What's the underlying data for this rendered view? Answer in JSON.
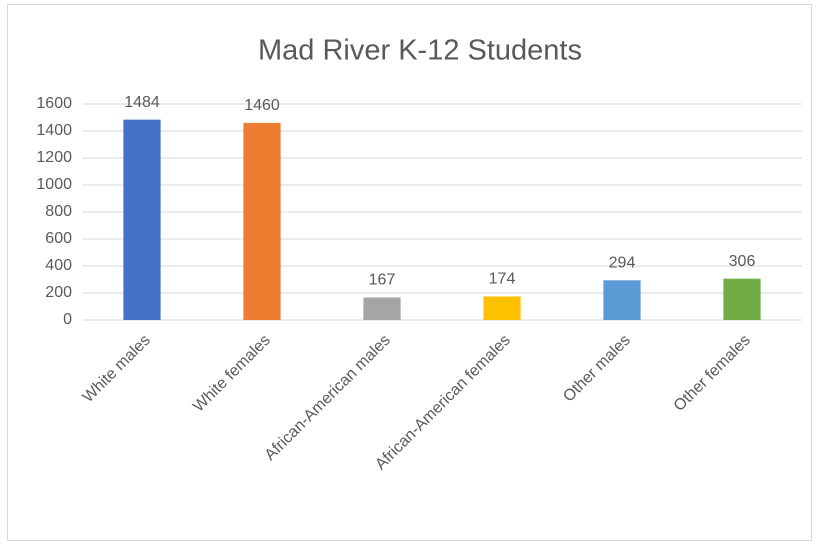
{
  "chart_data": {
    "type": "bar",
    "title": "Mad River K-12 Students",
    "categories": [
      "White males",
      "White females",
      "African-American males",
      "African-American females",
      "Other males",
      "Other females"
    ],
    "values": [
      1484,
      1460,
      167,
      174,
      294,
      306
    ],
    "colors": [
      "#4472c4",
      "#ed7d31",
      "#a5a5a5",
      "#ffc000",
      "#5b9bd5",
      "#70ad47"
    ],
    "ylim": [
      0,
      1600
    ],
    "yticks": [
      0,
      200,
      400,
      600,
      800,
      1000,
      1200,
      1400,
      1600
    ],
    "grid": true
  }
}
